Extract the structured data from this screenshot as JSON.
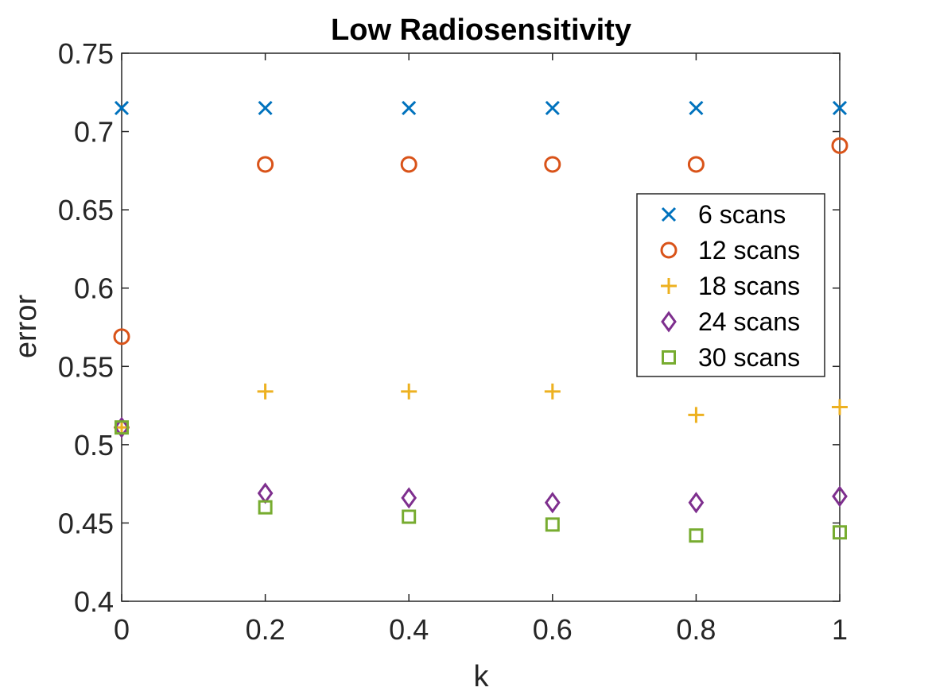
{
  "chart_data": {
    "type": "scatter",
    "title": "Low Radiosensitivity",
    "xlabel": "k",
    "ylabel": "error",
    "xlim": [
      0,
      1
    ],
    "ylim": [
      0.4,
      0.75
    ],
    "xticks": [
      0,
      0.2,
      0.4,
      0.6,
      0.8,
      1
    ],
    "xtick_labels": [
      "0",
      "0.2",
      "0.4",
      "0.6",
      "0.8",
      "1"
    ],
    "yticks": [
      0.4,
      0.45,
      0.5,
      0.55,
      0.6,
      0.65,
      0.7,
      0.75
    ],
    "ytick_labels": [
      "0.4",
      "0.45",
      "0.5",
      "0.55",
      "0.6",
      "0.65",
      "0.7",
      "0.75"
    ],
    "grid": false,
    "legend_position": "right",
    "x": [
      0,
      0.2,
      0.4,
      0.6,
      0.8,
      1
    ],
    "series": [
      {
        "name": "6 scans",
        "marker": "x",
        "color": "#0072BD",
        "values": [
          0.715,
          0.715,
          0.715,
          0.715,
          0.715,
          0.715
        ]
      },
      {
        "name": "12 scans",
        "marker": "circle",
        "color": "#D95319",
        "values": [
          0.569,
          0.679,
          0.679,
          0.679,
          0.679,
          0.691
        ]
      },
      {
        "name": "18 scans",
        "marker": "plus",
        "color": "#EDB120",
        "values": [
          0.511,
          0.534,
          0.534,
          0.534,
          0.519,
          0.524
        ]
      },
      {
        "name": "24 scans",
        "marker": "diamond",
        "color": "#7E2F8E",
        "values": [
          0.511,
          0.469,
          0.466,
          0.463,
          0.463,
          0.467
        ]
      },
      {
        "name": "30 scans",
        "marker": "square",
        "color": "#77AC30",
        "values": [
          0.511,
          0.46,
          0.454,
          0.449,
          0.442,
          0.444
        ]
      }
    ]
  }
}
